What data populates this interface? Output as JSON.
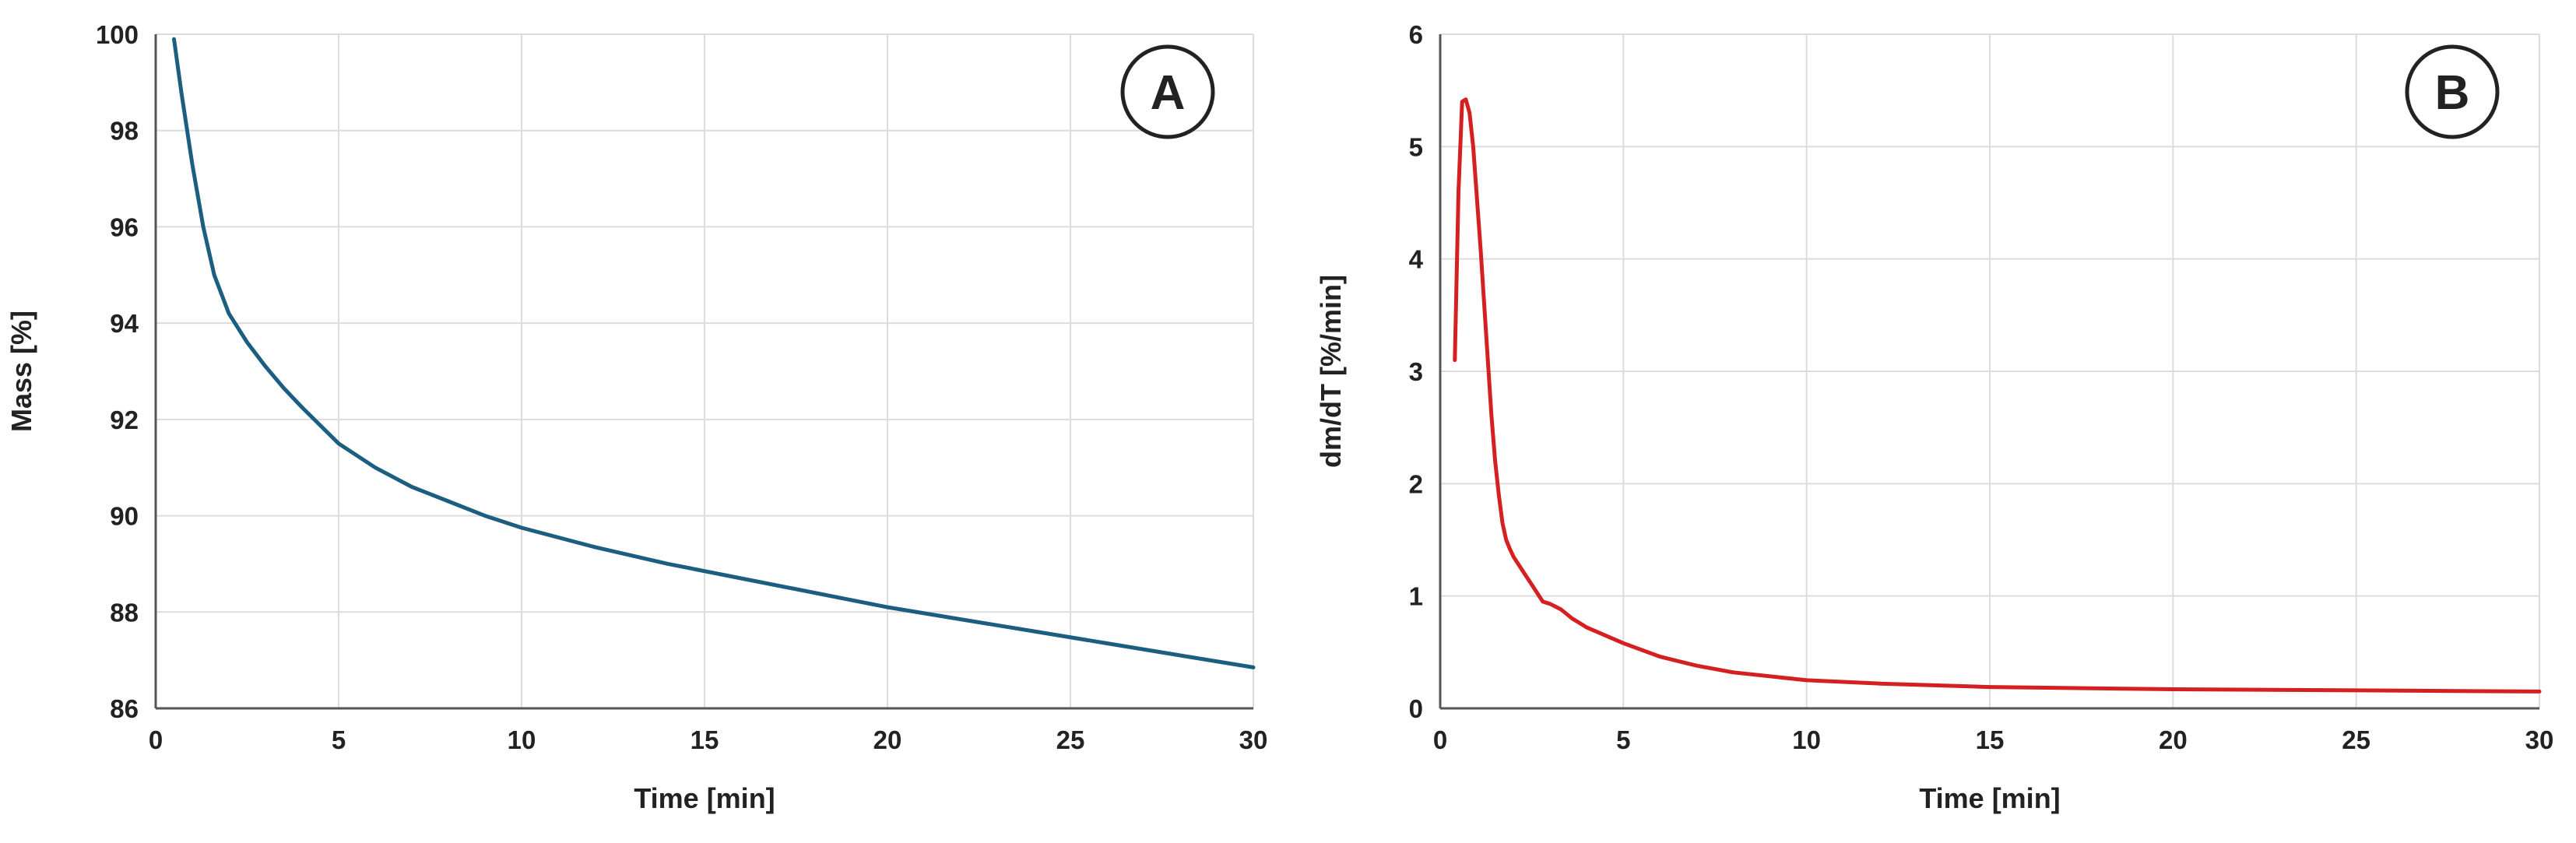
{
  "chart_data": [
    {
      "panel_label": "A",
      "type": "line",
      "xlabel": "Time [min]",
      "ylabel": "Mass [%]",
      "xlim": [
        0,
        30
      ],
      "ylim": [
        86,
        100
      ],
      "xticks": [
        0,
        5,
        10,
        15,
        20,
        25,
        30
      ],
      "yticks": [
        86,
        88,
        90,
        92,
        94,
        96,
        98,
        100
      ],
      "grid": true,
      "series": [
        {
          "color": "#1b5e80",
          "x": [
            0.5,
            0.7,
            1.0,
            1.3,
            1.6,
            2.0,
            2.5,
            3.0,
            3.5,
            4.0,
            5.0,
            6.0,
            7.0,
            8.0,
            9.0,
            10.0,
            12.0,
            14.0,
            16.0,
            18.0,
            20.0,
            22.0,
            24.0,
            26.0,
            28.0,
            30.0
          ],
          "y": [
            99.9,
            98.8,
            97.3,
            96.0,
            95.0,
            94.2,
            93.6,
            93.1,
            92.65,
            92.25,
            91.5,
            91.0,
            90.6,
            90.3,
            90.0,
            89.75,
            89.35,
            89.0,
            88.7,
            88.4,
            88.1,
            87.85,
            87.6,
            87.35,
            87.1,
            86.85
          ]
        }
      ]
    },
    {
      "panel_label": "B",
      "type": "line",
      "xlabel": "Time [min]",
      "ylabel": "dm/dT [%/min]",
      "xlim": [
        0,
        30
      ],
      "ylim": [
        0,
        6
      ],
      "xticks": [
        0,
        5,
        10,
        15,
        20,
        25,
        30
      ],
      "yticks": [
        0,
        1,
        2,
        3,
        4,
        5,
        6
      ],
      "grid": true,
      "series": [
        {
          "color": "#d42020",
          "x": [
            0.4,
            0.5,
            0.6,
            0.7,
            0.8,
            0.9,
            1.0,
            1.1,
            1.2,
            1.3,
            1.4,
            1.5,
            1.6,
            1.7,
            1.8,
            1.9,
            2.0,
            2.2,
            2.5,
            2.8,
            3.0,
            3.3,
            3.6,
            4.0,
            5.0,
            6.0,
            7.0,
            8.0,
            10.0,
            12.0,
            15.0,
            20.0,
            25.0,
            30.0
          ],
          "y": [
            3.1,
            4.6,
            5.4,
            5.42,
            5.3,
            5.0,
            4.55,
            4.1,
            3.6,
            3.1,
            2.6,
            2.2,
            1.9,
            1.65,
            1.5,
            1.42,
            1.35,
            1.25,
            1.1,
            0.95,
            0.93,
            0.88,
            0.8,
            0.72,
            0.58,
            0.46,
            0.38,
            0.32,
            0.25,
            0.22,
            0.19,
            0.17,
            0.16,
            0.15
          ]
        }
      ]
    }
  ]
}
